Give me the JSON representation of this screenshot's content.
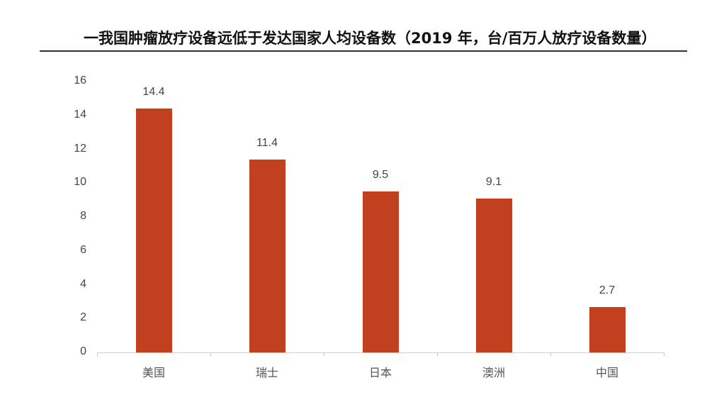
{
  "title": "一我国肿瘤放疗设备远低于发达国家人均设备数（2019 年，台/百万人放疗设备数量）",
  "chart_data": {
    "type": "bar",
    "title": "一我国肿瘤放疗设备远低于发达国家人均设备数（2019 年，台/百万人放疗设备数量）",
    "xlabel": "",
    "ylabel": "",
    "categories": [
      "美国",
      "瑞士",
      "日本",
      "澳洲",
      "中国"
    ],
    "values": [
      14.4,
      11.4,
      9.5,
      9.1,
      2.7
    ],
    "value_labels": [
      "14.4",
      "11.4",
      "9.5",
      "9.1",
      "2.7"
    ],
    "ylim": [
      0,
      16
    ],
    "yticks": [
      "0",
      "2",
      "4",
      "6",
      "8",
      "10",
      "12",
      "14",
      "16"
    ],
    "grid": false,
    "legend": "none",
    "bar_color": "#c3401e"
  }
}
